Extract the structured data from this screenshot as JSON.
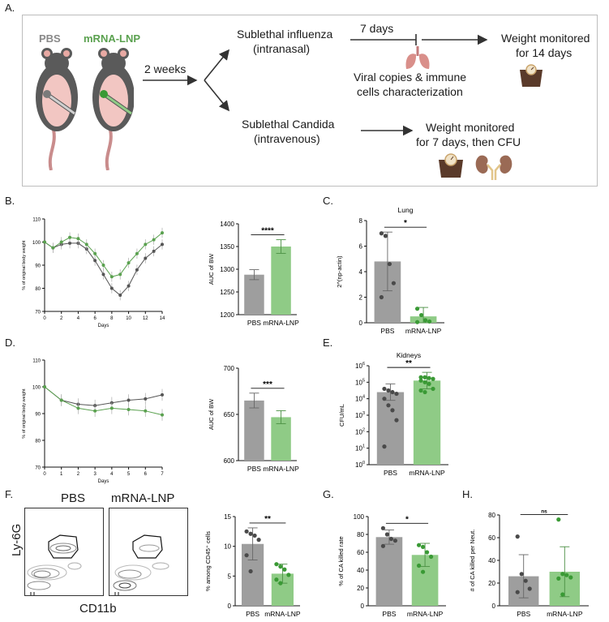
{
  "panels": {
    "a": "A.",
    "b": "B.",
    "c": "C.",
    "d": "D.",
    "e": "E.",
    "f": "F.",
    "g": "G.",
    "h": "H."
  },
  "schematic": {
    "pbs_label": "PBS",
    "lnp_label": "mRNA-LNP",
    "interval": "2 weeks",
    "influenza_title": "Sublethal influenza",
    "influenza_route": "(intranasal)",
    "days7": "7 days",
    "viral_line1": "Viral copies & immune",
    "viral_line2": "cells characterization",
    "weight14_line1": "Weight monitored",
    "weight14_line2": "for 14 days",
    "candida_title": "Sublethal Candida",
    "candida_route": "(intravenous)",
    "weight7_line1": "Weight monitored",
    "weight7_line2": "for 7 days, then CFU"
  },
  "colors": {
    "pbs": "#9e9e9e",
    "pbs_point": "#4a4a4a",
    "lnp": "#8fcb86",
    "lnp_point": "#3a9a35",
    "line_pbs": "#555555",
    "line_lnp": "#5aa14f"
  },
  "flow": {
    "pbs_label": "PBS",
    "lnp_label": "mRNA-LNP",
    "y_label": "Ly-6G",
    "x_label": "CD11b"
  },
  "chart_data": [
    {
      "id": "B-line",
      "type": "line",
      "xlabel": "Days",
      "ylabel": "% of original body weight",
      "xlim": [
        0,
        14
      ],
      "ylim": [
        70,
        110
      ],
      "xticks": [
        0,
        2,
        4,
        6,
        8,
        10,
        12,
        14
      ],
      "yticks": [
        70,
        80,
        90,
        100,
        110
      ],
      "series": [
        {
          "name": "PBS",
          "x": [
            0,
            1,
            2,
            3,
            4,
            5,
            6,
            7,
            8,
            9,
            10,
            11,
            12,
            13,
            14
          ],
          "y": [
            100,
            97.5,
            99,
            99.5,
            99.5,
            97,
            92,
            86,
            80,
            77,
            81,
            88,
            93,
            96,
            99
          ]
        },
        {
          "name": "mRNA-LNP",
          "x": [
            0,
            1,
            2,
            3,
            4,
            5,
            6,
            7,
            8,
            9,
            10,
            11,
            12,
            13,
            14
          ],
          "y": [
            100,
            97.5,
            100,
            102,
            101.5,
            99,
            95,
            90,
            85,
            86,
            91,
            95,
            99,
            101,
            104
          ]
        }
      ]
    },
    {
      "id": "B-bar",
      "type": "bar",
      "ylabel": "AUC of BW",
      "ylim": [
        1200,
        1400
      ],
      "yticks": [
        1200,
        1250,
        1300,
        1350,
        1400
      ],
      "categories": [
        "PBS",
        "mRNA-LNP"
      ],
      "values": [
        1288,
        1350
      ],
      "errors": [
        11,
        15
      ],
      "significance": "****"
    },
    {
      "id": "C-bar",
      "type": "bar",
      "title": "Lung",
      "ylabel": "2^(np-actin)",
      "ylim": [
        0,
        8
      ],
      "yticks": [
        0,
        2,
        4,
        6,
        8
      ],
      "categories": [
        "PBS",
        "mRNA-LNP"
      ],
      "values": [
        4.8,
        0.5
      ],
      "errors": [
        2.3,
        0.7
      ],
      "significance": "*",
      "points": [
        [
          7.0,
          6.8,
          4.6,
          3.1,
          2.0
        ],
        [
          1.1,
          0.6,
          0.2,
          0.1,
          0.05
        ]
      ]
    },
    {
      "id": "D-line",
      "type": "line",
      "xlabel": "Days",
      "ylabel": "% of original body weight",
      "xlim": [
        0,
        7
      ],
      "ylim": [
        70,
        110
      ],
      "xticks": [
        0,
        1,
        2,
        3,
        4,
        5,
        6,
        7
      ],
      "yticks": [
        70,
        80,
        90,
        100,
        110
      ],
      "series": [
        {
          "name": "PBS",
          "x": [
            0,
            1,
            2,
            3,
            4,
            5,
            6,
            7
          ],
          "y": [
            100,
            95,
            93.5,
            93,
            94,
            95,
            95.5,
            97
          ]
        },
        {
          "name": "mRNA-LNP",
          "x": [
            0,
            1,
            2,
            3,
            4,
            5,
            6,
            7
          ],
          "y": [
            100,
            95,
            92,
            91,
            92,
            91.5,
            91,
            89.5
          ]
        }
      ]
    },
    {
      "id": "D-bar",
      "type": "bar",
      "ylabel": "AUC of BW",
      "ylim": [
        600,
        700
      ],
      "yticks": [
        600,
        650,
        700
      ],
      "categories": [
        "PBS",
        "mRNA-LNP"
      ],
      "values": [
        665,
        647
      ],
      "errors": [
        8,
        7
      ],
      "significance": "***"
    },
    {
      "id": "E-bar",
      "type": "bar",
      "title": "Kidneys",
      "ylabel": "CFU/mL",
      "scale": "log",
      "ylim": [
        0,
        6
      ],
      "yticks": [
        "10^0",
        "10^1",
        "10^2",
        "10^3",
        "10^4",
        "10^5",
        "10^6"
      ],
      "categories": [
        "PBS",
        "mRNA-LNP"
      ],
      "values": [
        4.4,
        5.1
      ],
      "errors": [
        0.5,
        0.5
      ],
      "significance": "**",
      "points": [
        [
          4.6,
          4.5,
          4.4,
          4.3,
          4.0,
          3.6,
          3.3,
          2.7,
          1.1
        ],
        [
          5.3,
          5.3,
          5.25,
          5.2,
          5.1,
          5.0,
          4.9,
          4.6,
          4.5,
          4.4
        ]
      ]
    },
    {
      "id": "F-bar",
      "type": "bar",
      "ylabel": "% among CD45⁺ cells",
      "ylim": [
        0,
        15
      ],
      "yticks": [
        0,
        5,
        10,
        15
      ],
      "categories": [
        "PBS",
        "mRNA-LNP"
      ],
      "values": [
        10.4,
        5.4
      ],
      "errors": [
        2.7,
        1.6
      ],
      "significance": "**",
      "points": [
        [
          12.5,
          12.1,
          11.8,
          11.1,
          8.5,
          5.8
        ],
        [
          7.0,
          6.6,
          6.1,
          5.2,
          4.4,
          3.8
        ]
      ]
    },
    {
      "id": "G-bar",
      "type": "bar",
      "ylabel": "% of CA killed rate",
      "ylim": [
        0,
        100
      ],
      "yticks": [
        0,
        20,
        40,
        60,
        80,
        100
      ],
      "categories": [
        "PBS",
        "mRNA-LNP"
      ],
      "values": [
        77,
        57
      ],
      "errors": [
        8,
        13
      ],
      "significance": "*",
      "points": [
        [
          87,
          80,
          75,
          73,
          67
        ],
        [
          68,
          66,
          60,
          55,
          45,
          38
        ]
      ]
    },
    {
      "id": "H-bar",
      "type": "bar",
      "ylabel": "# of CA killed per Neut.",
      "ylim": [
        0,
        80
      ],
      "yticks": [
        0,
        20,
        40,
        60,
        80
      ],
      "categories": [
        "PBS",
        "mRNA-LNP"
      ],
      "values": [
        26,
        30
      ],
      "errors": [
        19,
        22
      ],
      "significance": "ns",
      "points": [
        [
          61,
          28,
          22,
          15,
          12
        ],
        [
          76,
          28,
          27,
          25,
          24,
          10
        ]
      ]
    }
  ]
}
